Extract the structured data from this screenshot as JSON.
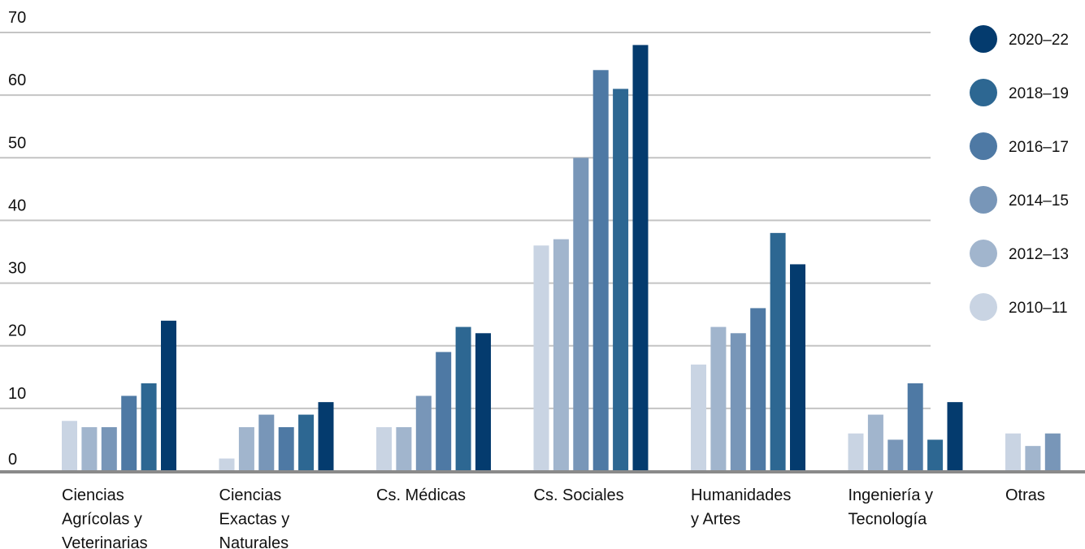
{
  "chart_data": {
    "type": "bar",
    "title": "",
    "xlabel": "",
    "ylabel": "",
    "ylim": [
      0,
      70
    ],
    "yticks": [
      0,
      10,
      20,
      30,
      40,
      50,
      60,
      70
    ],
    "grid": true,
    "legend_placement": "right",
    "categories": [
      "Ciencias Agrícolas y Veterinarias",
      "Ciencias Exactas y Naturales",
      "Cs. Médicas",
      "Cs. Sociales",
      "Humanidades y Artes",
      "Ingeniería y Tecnología",
      "Otras"
    ],
    "category_lines": [
      [
        "Ciencias",
        "Agrícolas y",
        "Veterinarias"
      ],
      [
        "Ciencias",
        "Exactas y",
        "Naturales"
      ],
      [
        "Cs. Médicas"
      ],
      [
        "Cs. Sociales"
      ],
      [
        "Humanidades",
        "y Artes"
      ],
      [
        "Ingeniería y",
        "Tecnología"
      ],
      [
        "Otras"
      ]
    ],
    "series": [
      {
        "name": "2010–11",
        "color": "#c9d4e3",
        "values": [
          8,
          2,
          7,
          36,
          17,
          6,
          6
        ]
      },
      {
        "name": "2012–13",
        "color": "#a1b5cd",
        "values": [
          7,
          7,
          7,
          37,
          23,
          9,
          4
        ]
      },
      {
        "name": "2014–15",
        "color": "#7896b8",
        "values": [
          7,
          9,
          12,
          50,
          22,
          5,
          6
        ]
      },
      {
        "name": "2016–17",
        "color": "#4e79a4",
        "values": [
          12,
          7,
          19,
          64,
          26,
          14,
          null
        ]
      },
      {
        "name": "2018–19",
        "color": "#2d6792",
        "values": [
          14,
          9,
          23,
          61,
          38,
          5,
          null
        ]
      },
      {
        "name": "2020–22",
        "color": "#043b6e",
        "values": [
          24,
          11,
          22,
          68,
          33,
          11,
          null
        ]
      }
    ],
    "colors": {
      "grid": "#c4c4c4",
      "axis": "#8a8a8a"
    }
  }
}
